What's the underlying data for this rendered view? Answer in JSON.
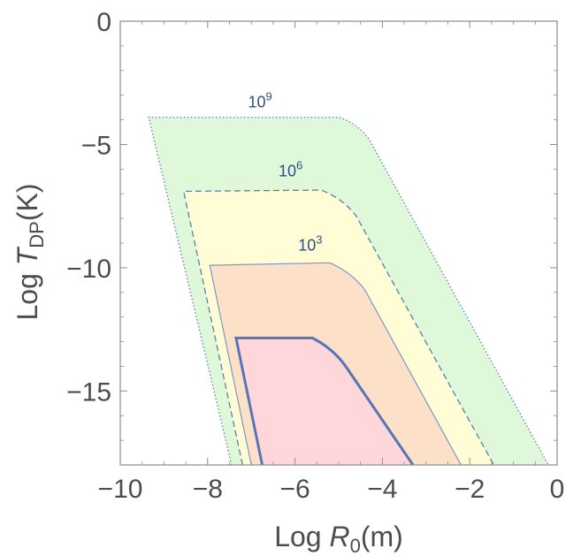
{
  "chart_data": {
    "type": "contour",
    "xlabel": {
      "prefix": "Log ",
      "var": "R",
      "sub": "0",
      "suffix": "(m)"
    },
    "ylabel": {
      "prefix": "Log ",
      "var": "T",
      "sub": "DP",
      "suffix": "(K)"
    },
    "xlim": [
      -10,
      0
    ],
    "ylim": [
      -18,
      0
    ],
    "xticks": [
      -10,
      -8,
      -6,
      -4,
      -2,
      0
    ],
    "yticks": [
      0,
      -5,
      -10,
      -15
    ],
    "xtick_labels": [
      "−10",
      "−8",
      "−6",
      "−4",
      "−2",
      "0"
    ],
    "ytick_labels": [
      "0",
      "−5",
      "−10",
      "−15"
    ],
    "grid": false,
    "regions": [
      {
        "label": "10",
        "exponent": "9",
        "fill": "#dff8d9",
        "stroke": "#5a7fa8",
        "dash": "dotted",
        "stroke_width": 1.3,
        "label_at": [
          -6.8,
          -3.5
        ],
        "points": [
          [
            -7.45,
            -18
          ],
          [
            -9.35,
            -3.9
          ],
          [
            -5.0,
            -3.9
          ],
          [
            -4.6,
            -4.1
          ],
          [
            -4.3,
            -4.8
          ],
          [
            -0.2,
            -18
          ]
        ]
      },
      {
        "label": "10",
        "exponent": "6",
        "fill": "#fefdd6",
        "stroke": "#5a7fa8",
        "dash": "dashed",
        "stroke_width": 1.3,
        "label_at": [
          -6.1,
          -6.3
        ],
        "points": [
          [
            -7.2,
            -18
          ],
          [
            -8.55,
            -6.9
          ],
          [
            -5.4,
            -6.85
          ],
          [
            -4.9,
            -7.2
          ],
          [
            -4.6,
            -7.9
          ],
          [
            -1.45,
            -18
          ]
        ]
      },
      {
        "label": "10",
        "exponent": "3",
        "fill": "#fde0c8",
        "stroke": "#7f95c4",
        "dash": "solid",
        "stroke_width": 1.2,
        "label_at": [
          -5.65,
          -9.3
        ],
        "points": [
          [
            -7.0,
            -18
          ],
          [
            -7.95,
            -9.9
          ],
          [
            -5.2,
            -9.8
          ],
          [
            -4.7,
            -10.2
          ],
          [
            -4.4,
            -10.9
          ],
          [
            -2.2,
            -18
          ]
        ]
      },
      {
        "label": "",
        "exponent": "",
        "fill": "#ffd6da",
        "stroke": "#5875b8",
        "dash": "solid",
        "stroke_width": 3,
        "label_at": null,
        "points": [
          [
            -6.75,
            -18
          ],
          [
            -7.35,
            -12.85
          ],
          [
            -5.6,
            -12.85
          ],
          [
            -5.1,
            -13.3
          ],
          [
            -4.8,
            -14.1
          ],
          [
            -3.3,
            -18
          ]
        ]
      }
    ]
  }
}
